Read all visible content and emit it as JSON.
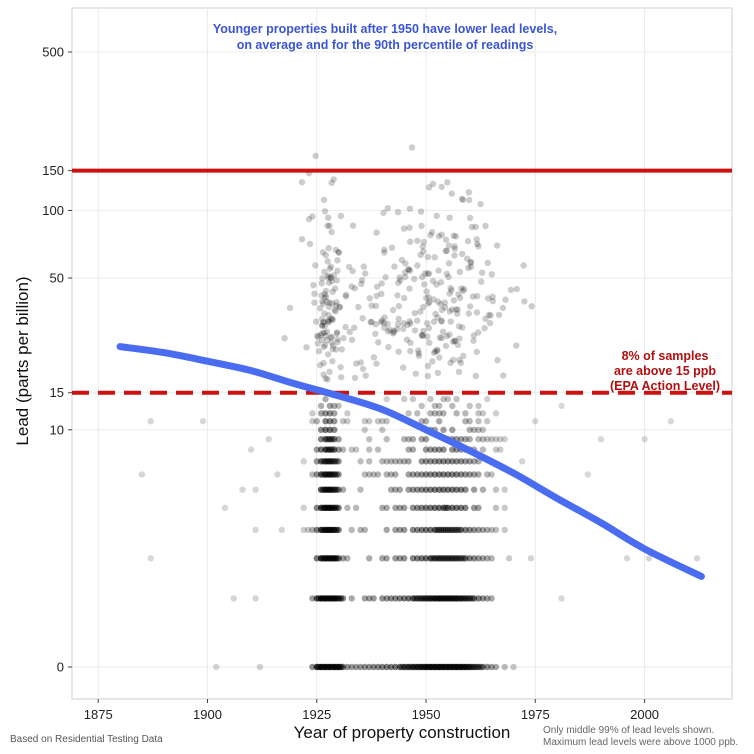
{
  "chart_data": {
    "type": "scatter",
    "title_lines": [
      "Younger properties built after 1950 have lower lead levels,",
      "on average and for the 90th percentile of readings"
    ],
    "xlabel": "Year of property construction",
    "ylabel": "Lead (parts per billion)",
    "xlim": [
      1869,
      2020
    ],
    "x_ticks": [
      1875,
      1900,
      1925,
      1950,
      1975,
      2000
    ],
    "y_scale": "log1p",
    "y_ticks": [
      0,
      10,
      15,
      50,
      100,
      150,
      500
    ],
    "grid": true,
    "reference_lines": [
      {
        "y": 150,
        "style": "solid",
        "color": "#cc1111"
      },
      {
        "y": 15,
        "style": "dashed",
        "color": "#cc1111"
      }
    ],
    "epa_annotation_lines": [
      "8% of samples",
      "are above 15 ppb",
      "(EPA Action Level)"
    ],
    "trend_line": {
      "color": "#4a6cf0",
      "x": [
        1880,
        1890,
        1900,
        1910,
        1920,
        1930,
        1940,
        1950,
        1960,
        1970,
        1980,
        1990,
        2000,
        2013
      ],
      "y": [
        24.5,
        23,
        21,
        19,
        16.5,
        14.5,
        12.5,
        10,
        7.9,
        6.1,
        4.5,
        3.3,
        2.3,
        1.5
      ]
    },
    "points_note": "semi-transparent black points: densest at 1925-1930 and 1945-1970",
    "footer_left": "Based on Residential Testing Data",
    "footer_right_lines": [
      "Only middle 99% of lead levels shown.",
      "Maximum lead levels were above 1000 ppb."
    ],
    "colors": {
      "points": "#000000",
      "reference": "#cc1111",
      "trend": "#4a6cf0",
      "title": "#3b55d0",
      "epa_text": "#b01010"
    }
  }
}
